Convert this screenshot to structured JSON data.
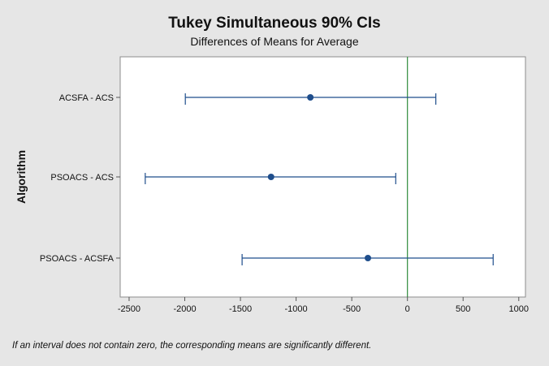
{
  "chart_data": {
    "type": "interval",
    "title": "Tukey Simultaneous 90% CIs",
    "subtitle": "Differences of Means for Average",
    "ylabel": "Algorithm",
    "xlabel": "",
    "xlim": [
      -2580,
      1060
    ],
    "xticks": [
      -2500,
      -2000,
      -1500,
      -1000,
      -500,
      0,
      500,
      1000
    ],
    "reference_value": 0,
    "categories": [
      "ACSFA - ACS",
      "PSOACS - ACS",
      "PSOACS - ACSFA"
    ],
    "intervals": [
      {
        "label": "ACSFA - ACS",
        "lower": -1995,
        "center": -872,
        "upper": 255
      },
      {
        "label": "PSOACS - ACS",
        "lower": -2355,
        "center": -1225,
        "upper": -105
      },
      {
        "label": "PSOACS - ACSFA",
        "lower": -1485,
        "center": -355,
        "upper": 770
      }
    ],
    "colors": {
      "interval": "#1f4e8c",
      "point": "#1f4e8c",
      "reference": "#2e8b3a",
      "plot_bg": "#ffffff",
      "page_bg": "#e6e6e6"
    },
    "footnote": "If an interval does not contain zero, the corresponding means are significantly different."
  }
}
